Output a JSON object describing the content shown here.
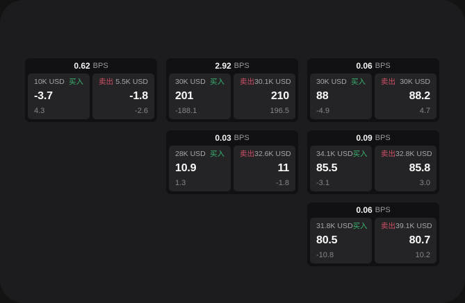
{
  "labels": {
    "bps": "BPS",
    "buy": "买入",
    "sell": "卖出"
  },
  "colors": {
    "window_bg": "#1c1c1e",
    "card_bg": "#111113",
    "panel_bg": "#242427",
    "buy_green": "#3bb26e",
    "sell_red": "#cc4f63"
  },
  "cards": [
    {
      "bps": "0.62",
      "buy": {
        "amount": "10K USD",
        "price": "-3.7",
        "delta": "4.3"
      },
      "sell": {
        "amount": "5.5K USD",
        "price": "-1.8",
        "delta": "-2.6"
      }
    },
    {
      "bps": "2.92",
      "buy": {
        "amount": "30K USD",
        "price": "201",
        "delta": "-188.1"
      },
      "sell": {
        "amount": "30.1K USD",
        "price": "210",
        "delta": "196.5"
      }
    },
    {
      "bps": "0.06",
      "buy": {
        "amount": "30K USD",
        "price": "88",
        "delta": "-4.9"
      },
      "sell": {
        "amount": "30K USD",
        "price": "88.2",
        "delta": "4.7"
      }
    },
    {
      "bps": "0.03",
      "buy": {
        "amount": "28K USD",
        "price": "10.9",
        "delta": "1.3"
      },
      "sell": {
        "amount": "32.6K USD",
        "price": "11",
        "delta": "-1.8"
      }
    },
    {
      "bps": "0.09",
      "buy": {
        "amount": "34.1K USD",
        "price": "85.5",
        "delta": "-3.1"
      },
      "sell": {
        "amount": "32.8K USD",
        "price": "85.8",
        "delta": "3.0"
      }
    },
    {
      "bps": "0.06",
      "buy": {
        "amount": "31.8K USD",
        "price": "80.5",
        "delta": "-10.8"
      },
      "sell": {
        "amount": "39.1K USD",
        "price": "80.7",
        "delta": "10.2"
      }
    }
  ]
}
